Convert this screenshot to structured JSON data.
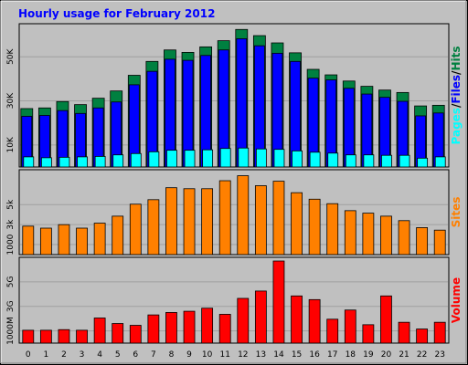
{
  "title": "Hourly usage for February 2012",
  "colors": {
    "frame_bg": "#c0c0c0",
    "plot_bg": "#c0c0c0",
    "title": "#0000ff",
    "hits": "#008040",
    "files": "#0000ff",
    "pages": "#00ffff",
    "sites": "#ff8000",
    "volume": "#ff0000",
    "grid": "#a0a0a0"
  },
  "chart_data": [
    {
      "type": "bar",
      "panel": "hits-files-pages",
      "categories": [
        "0",
        "1",
        "2",
        "3",
        "4",
        "5",
        "6",
        "7",
        "8",
        "9",
        "10",
        "11",
        "12",
        "13",
        "14",
        "15",
        "16",
        "17",
        "18",
        "19",
        "20",
        "21",
        "22",
        "23"
      ],
      "series": [
        {
          "name": "Hits",
          "values": [
            26500,
            26800,
            29700,
            28300,
            31200,
            34500,
            41600,
            47900,
            53100,
            52000,
            54500,
            57300,
            62400,
            59600,
            56300,
            51800,
            44300,
            41800,
            39000,
            36600,
            34900,
            33800,
            27700,
            28000
          ]
        },
        {
          "name": "Files",
          "values": [
            23000,
            23400,
            25600,
            24300,
            26800,
            29500,
            37300,
            43400,
            48900,
            48400,
            50600,
            53100,
            58200,
            55000,
            51600,
            47900,
            40300,
            39500,
            35700,
            33100,
            31600,
            29800,
            23200,
            24500
          ]
        },
        {
          "name": "Pages",
          "values": [
            4600,
            4200,
            4400,
            4600,
            4800,
            5500,
            6100,
            6900,
            7600,
            7600,
            7800,
            8400,
            8600,
            8200,
            8000,
            7300,
            6700,
            6300,
            5500,
            5500,
            5300,
            5300,
            4000,
            4600
          ]
        }
      ],
      "ylim": [
        0,
        65000
      ],
      "ytick_labels": [
        "10K",
        "30K",
        "50K"
      ],
      "ytick_values": [
        10000,
        30000,
        50000
      ],
      "side_labels": [
        "Pages",
        "/",
        "Files",
        "/",
        "Hits"
      ]
    },
    {
      "type": "bar",
      "panel": "sites",
      "categories": [
        "0",
        "1",
        "2",
        "3",
        "4",
        "5",
        "6",
        "7",
        "8",
        "9",
        "10",
        "11",
        "12",
        "13",
        "14",
        "15",
        "16",
        "17",
        "18",
        "19",
        "20",
        "21",
        "22",
        "23"
      ],
      "series": [
        {
          "name": "Sites",
          "values": [
            2850,
            2650,
            3000,
            2650,
            3150,
            3850,
            5050,
            5500,
            6700,
            6600,
            6600,
            7400,
            7900,
            6900,
            7350,
            6200,
            5550,
            5100,
            4400,
            4150,
            3850,
            3400,
            2700,
            2450
          ]
        }
      ],
      "ylim": [
        0,
        8500
      ],
      "ytick_labels": [
        "1000",
        "3k",
        "5k"
      ],
      "ytick_values": [
        1000,
        3000,
        5000
      ],
      "side_labels": [
        "Sites"
      ]
    },
    {
      "type": "bar",
      "panel": "volume",
      "categories": [
        "0",
        "1",
        "2",
        "3",
        "4",
        "5",
        "6",
        "7",
        "8",
        "9",
        "10",
        "11",
        "12",
        "13",
        "14",
        "15",
        "16",
        "17",
        "18",
        "19",
        "20",
        "21",
        "22",
        "23"
      ],
      "series": [
        {
          "name": "Volume",
          "values": [
            1.05,
            1.05,
            1.1,
            1.05,
            2.05,
            1.6,
            1.45,
            2.3,
            2.5,
            2.6,
            2.85,
            2.35,
            3.65,
            4.25,
            6.7,
            3.85,
            3.55,
            1.95,
            2.7,
            1.5,
            3.85,
            1.7,
            1.15,
            1.7
          ]
        }
      ],
      "ylim": [
        0,
        7
      ],
      "ytick_labels": [
        "1000M",
        "3G",
        "5G"
      ],
      "ytick_values": [
        1,
        3,
        5
      ],
      "side_labels": [
        "Volume"
      ]
    }
  ]
}
